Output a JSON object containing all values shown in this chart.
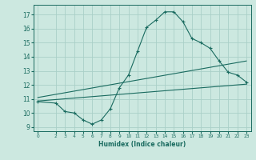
{
  "xlabel": "Humidex (Indice chaleur)",
  "bg_color": "#cce8e0",
  "grid_color": "#aad0c8",
  "line_color": "#1a6b60",
  "xlim": [
    -0.5,
    23.5
  ],
  "ylim": [
    8.7,
    17.7
  ],
  "xticks": [
    0,
    2,
    3,
    4,
    5,
    6,
    7,
    8,
    9,
    10,
    11,
    12,
    13,
    14,
    15,
    16,
    17,
    18,
    19,
    20,
    21,
    22,
    23
  ],
  "yticks": [
    9,
    10,
    11,
    12,
    13,
    14,
    15,
    16,
    17
  ],
  "curve1_x": [
    0,
    2,
    3,
    4,
    5,
    6,
    7,
    8,
    9,
    10,
    11,
    12,
    13,
    14,
    15,
    16,
    17,
    18,
    19,
    20,
    21,
    22,
    23
  ],
  "curve1_y": [
    10.8,
    10.7,
    10.1,
    10.0,
    9.5,
    9.2,
    9.5,
    10.3,
    11.8,
    12.7,
    14.4,
    16.1,
    16.6,
    17.2,
    17.2,
    16.5,
    15.3,
    15.0,
    14.6,
    13.7,
    12.9,
    12.7,
    12.2
  ],
  "line2_x": [
    0,
    23
  ],
  "line2_y": [
    10.85,
    12.05
  ],
  "line3_x": [
    0,
    23
  ],
  "line3_y": [
    11.1,
    13.7
  ]
}
